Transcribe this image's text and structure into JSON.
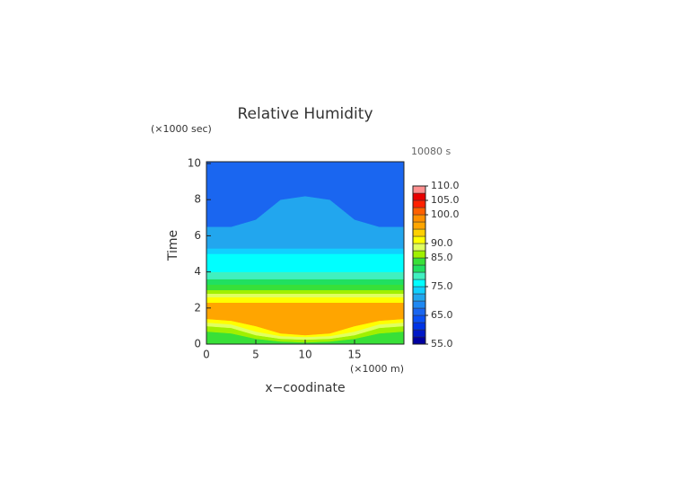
{
  "chart_data": {
    "type": "contour",
    "title": "Relative Humidity",
    "y_unit": "(×1000 sec)",
    "time_label": "10080 s",
    "ylabel": "Time",
    "xlabel": "x−coodinate",
    "x_unit": "(×1000 m)",
    "xlim": [
      0,
      20
    ],
    "ylim": [
      0,
      10.1
    ],
    "xticks": [
      0,
      5,
      10,
      15
    ],
    "yticks": [
      0,
      2,
      4,
      6,
      8,
      10
    ],
    "x": [
      0,
      2.5,
      5,
      7.5,
      10,
      12.5,
      15,
      17.5,
      20
    ],
    "bands": [
      {
        "level": 82.5,
        "upper": [
          0.7,
          0.6,
          0.3,
          0.15,
          0.1,
          0.15,
          0.3,
          0.6,
          0.7
        ]
      },
      {
        "level": 85,
        "upper": [
          1.0,
          0.9,
          0.5,
          0.3,
          0.25,
          0.3,
          0.5,
          0.9,
          1.0
        ]
      },
      {
        "level": 87.5,
        "upper": [
          1.2,
          1.1,
          0.7,
          0.45,
          0.4,
          0.45,
          0.7,
          1.1,
          1.2
        ]
      },
      {
        "level": 90,
        "upper": [
          1.4,
          1.3,
          1.0,
          0.6,
          0.5,
          0.6,
          1.0,
          1.3,
          1.4
        ]
      },
      {
        "level": 95,
        "upper": [
          2.3,
          2.3,
          2.3,
          2.3,
          2.3,
          2.3,
          2.3,
          2.3,
          2.3
        ]
      },
      {
        "level": 90,
        "upper": [
          2.6,
          2.6,
          2.6,
          2.6,
          2.6,
          2.6,
          2.6,
          2.6,
          2.6
        ]
      },
      {
        "level": 87.5,
        "upper": [
          2.8,
          2.8,
          2.8,
          2.8,
          2.8,
          2.8,
          2.8,
          2.8,
          2.8
        ]
      },
      {
        "level": 85,
        "upper": [
          3.0,
          3.0,
          3.0,
          3.0,
          3.0,
          3.0,
          3.0,
          3.0,
          3.0
        ]
      },
      {
        "level": 82.5,
        "upper": [
          3.3,
          3.3,
          3.3,
          3.3,
          3.3,
          3.3,
          3.3,
          3.3,
          3.3
        ]
      },
      {
        "level": 80,
        "upper": [
          3.6,
          3.6,
          3.6,
          3.6,
          3.6,
          3.6,
          3.6,
          3.6,
          3.6
        ]
      },
      {
        "level": 77.5,
        "upper": [
          4.0,
          4.0,
          4.0,
          4.0,
          4.0,
          4.0,
          4.0,
          4.0,
          4.0
        ]
      },
      {
        "level": 75,
        "upper": [
          5.0,
          5.0,
          5.0,
          5.0,
          5.0,
          5.0,
          5.0,
          5.0,
          5.0
        ]
      },
      {
        "level": 72.5,
        "upper": [
          5.3,
          5.3,
          5.3,
          5.3,
          5.3,
          5.3,
          5.3,
          5.3,
          5.3
        ]
      },
      {
        "level": 70,
        "upper": [
          6.5,
          6.5,
          6.9,
          8.0,
          8.2,
          8.0,
          6.9,
          6.5,
          6.5
        ]
      },
      {
        "level": 65,
        "upper": [
          10.08,
          10.08,
          10.08,
          10.08,
          10.08,
          10.08,
          10.08,
          10.08,
          10.08
        ]
      }
    ],
    "colorbar": {
      "lim": [
        55,
        110
      ],
      "levels": [
        55,
        57.5,
        60,
        62.5,
        65,
        67.5,
        70,
        72.5,
        75,
        77.5,
        80,
        82.5,
        85,
        87.5,
        90,
        92.5,
        95,
        97.5,
        100,
        102.5,
        105,
        107.5
      ],
      "colors": [
        "#0000a0",
        "#0018c8",
        "#0034e6",
        "#0a50f5",
        "#1a66f0",
        "#1e88f2",
        "#22a6ee",
        "#10d0ff",
        "#00ffff",
        "#40f0c0",
        "#20e060",
        "#38e038",
        "#a0f000",
        "#e0ff60",
        "#ffff00",
        "#ffd000",
        "#ffa500",
        "#ff9000",
        "#ff6000",
        "#ff2000",
        "#e80000",
        "#ff9090"
      ],
      "ticks": [
        {
          "value": 55,
          "label": "55.0"
        },
        {
          "value": 65,
          "label": "65.0"
        },
        {
          "value": 75,
          "label": "75.0"
        },
        {
          "value": 85,
          "label": "85.0"
        },
        {
          "value": 90,
          "label": "90.0"
        },
        {
          "value": 100,
          "label": "100.0"
        },
        {
          "value": 105,
          "label": "105.0"
        },
        {
          "value": 110,
          "label": "110.0"
        }
      ]
    }
  }
}
